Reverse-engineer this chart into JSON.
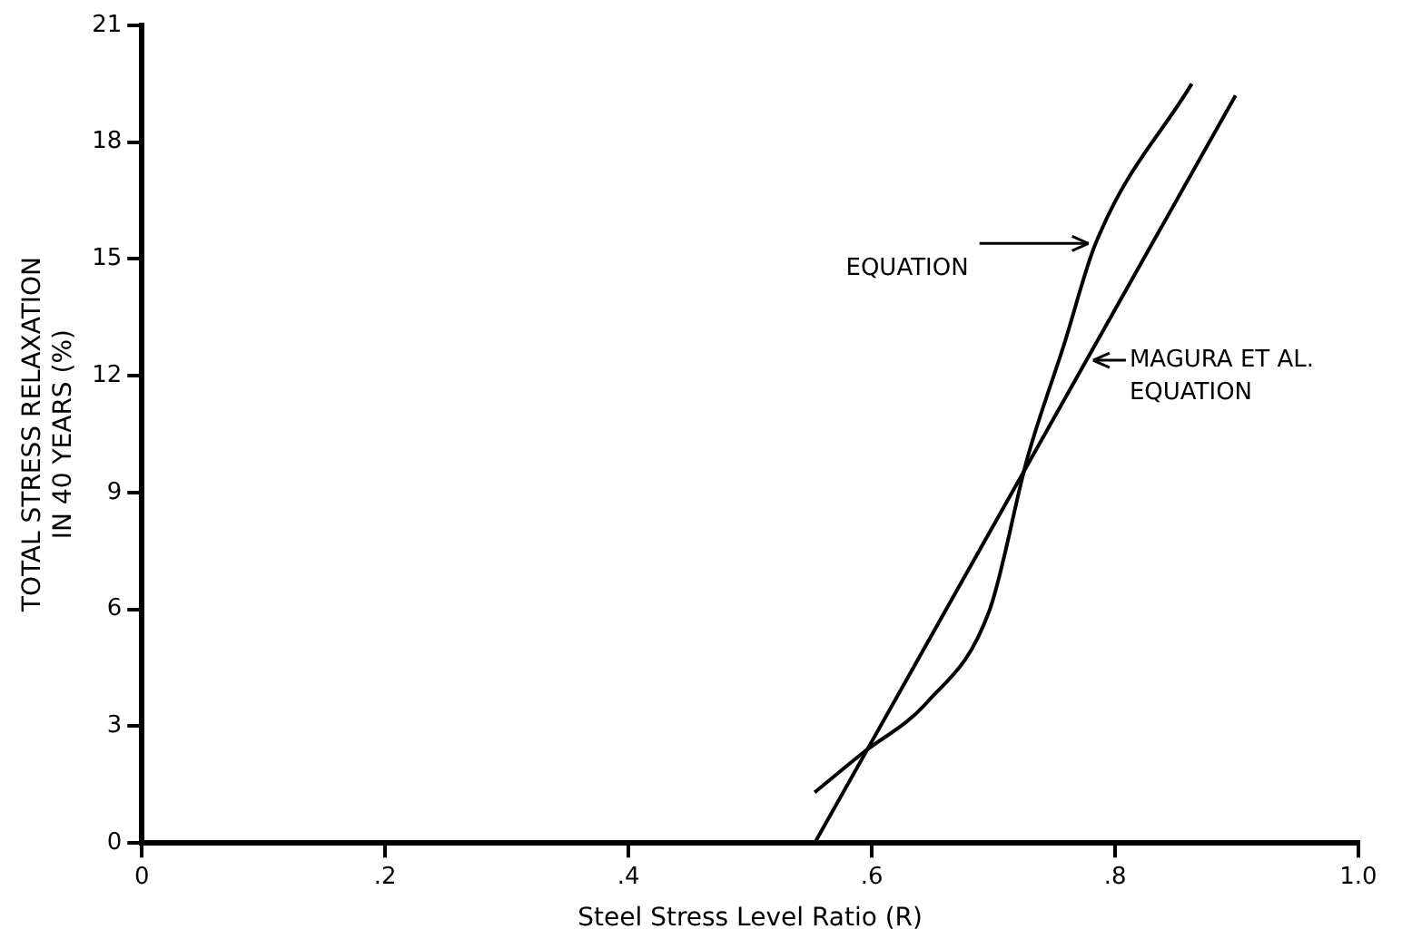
{
  "chart_data": {
    "type": "line",
    "xlabel": "Steel Stress Level Ratio (R)",
    "ylabel": "TOTAL STRESS RELAXATION\nIN 40 YEARS (%)",
    "xlim": [
      0,
      1.0
    ],
    "xticks": [
      0,
      {
        "value": 0.2,
        "label": ".2"
      },
      {
        "value": 0.4,
        "label": ".4"
      },
      {
        "value": 0.6,
        "label": ".6"
      },
      {
        "value": 0.8,
        "label": ".8"
      },
      {
        "value": 1.0,
        "label": "1.0"
      }
    ],
    "ylim": [
      0,
      21
    ],
    "yticks": [
      0,
      3,
      6,
      9,
      12,
      15,
      18,
      21
    ],
    "grid": false,
    "legend": false,
    "marker": "none",
    "line_style": "solid",
    "series": [
      {
        "color": "#000000",
        "x": [
          0.553,
          0.592,
          0.645,
          0.697,
          0.728,
          0.758,
          0.784,
          0.863
        ],
        "values": [
          1.3,
          2.3,
          3.6,
          6.0,
          9.9,
          12.8,
          15.4,
          19.5
        ]
      },
      {
        "color": "#000000",
        "x": [
          0.553,
          0.899
        ],
        "values": [
          0,
          19.2
        ]
      }
    ],
    "annotations": [
      {
        "text": "EQUATION",
        "x": 0.784,
        "y": 15.4
      },
      {
        "text": "MAGURA ET AL.\nEQUATION",
        "x": 0.776,
        "y": 12.4
      }
    ]
  }
}
